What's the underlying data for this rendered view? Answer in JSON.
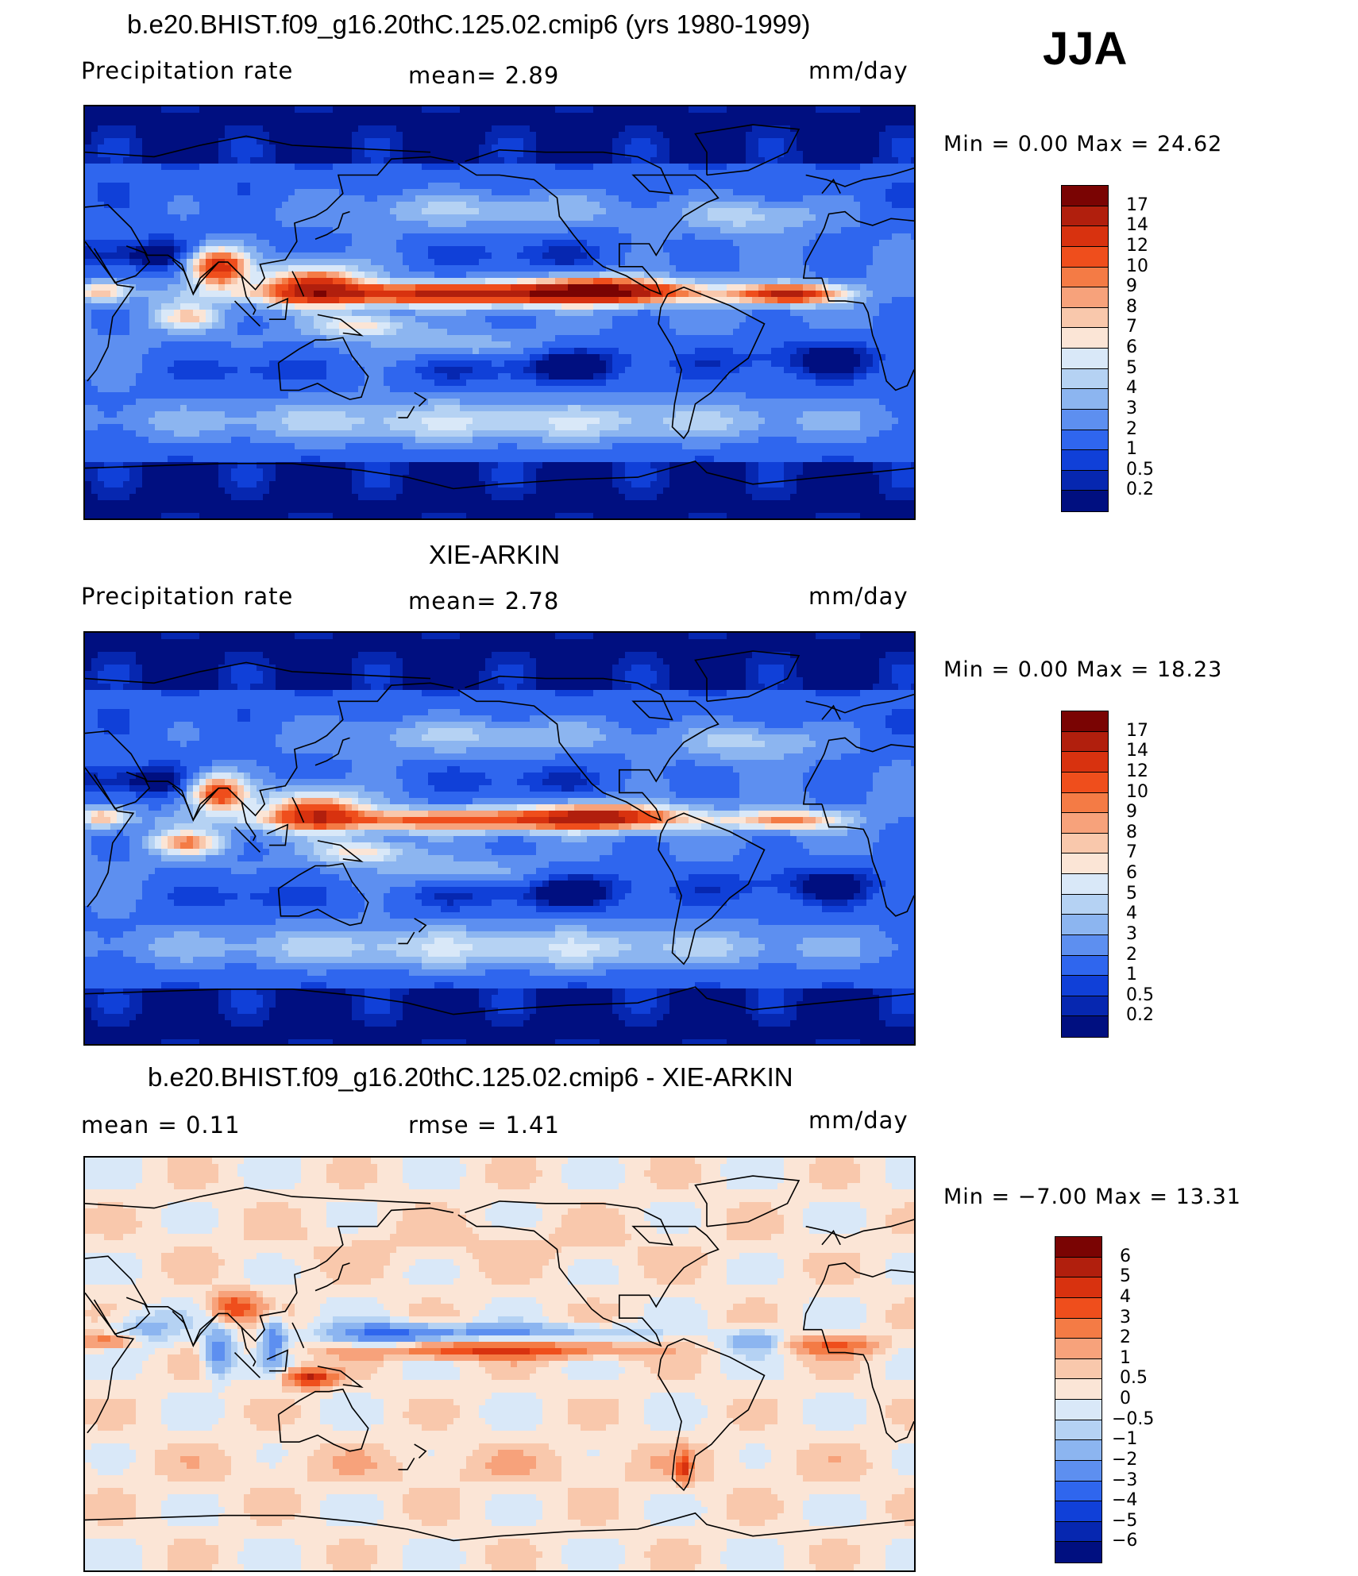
{
  "figure": {
    "season": "JJA",
    "panels": [
      {
        "title": "b.e20.BHIST.f09_g16.20thC.125.02.cmip6 (yrs 1980-1999)",
        "left_label": "Precipitation  rate",
        "center_label": "mean=    2.89",
        "units": "mm/day",
        "minmax": "Min  =     0.00  Max  =    24.62",
        "palette": "seq"
      },
      {
        "title": "XIE-ARKIN",
        "left_label": "Precipitation  rate",
        "center_label": "mean=    2.78",
        "units": "mm/day",
        "minmax": "Min  =     0.00  Max  =    18.23",
        "palette": "seq"
      },
      {
        "title": "b.e20.BHIST.f09_g16.20thC.125.02.cmip6 - XIE-ARKIN",
        "left_label": "mean  =     0.11",
        "center_label": "rmse  =     1.41",
        "units": "mm/day",
        "minmax": "Min  =   −7.00  Max  =    13.31",
        "palette": "div"
      }
    ]
  },
  "chart_data": [
    {
      "type": "heatmap",
      "title": "b.e20.BHIST.f09_g16.20thC.125.02.cmip6 (yrs 1980-1999)",
      "variable": "Precipitation  rate",
      "units": "mm/day",
      "mean": 2.89,
      "min": 0.0,
      "max": 24.62,
      "colorbar_levels": [
        "17",
        "14",
        "12",
        "10",
        "9",
        "8",
        "7",
        "6",
        "5",
        "4",
        "3",
        "2",
        "1",
        "0.5",
        "0.2"
      ],
      "colors": [
        "#7a0403",
        "#b11f0d",
        "#d8320f",
        "#ef4e1c",
        "#f47b45",
        "#f7a27b",
        "#f9c8ac",
        "#fbe5d6",
        "#d9e8f8",
        "#b5d2f3",
        "#8cb5f0",
        "#5d8ff0",
        "#2f66ee",
        "#1040d8",
        "#0627b0",
        "#000f80"
      ]
    },
    {
      "type": "heatmap",
      "title": "XIE-ARKIN",
      "variable": "Precipitation  rate",
      "units": "mm/day",
      "mean": 2.78,
      "min": 0.0,
      "max": 18.23,
      "colorbar_levels": [
        "17",
        "14",
        "12",
        "10",
        "9",
        "8",
        "7",
        "6",
        "5",
        "4",
        "3",
        "2",
        "1",
        "0.5",
        "0.2"
      ],
      "colors": [
        "#7a0403",
        "#b11f0d",
        "#d8320f",
        "#ef4e1c",
        "#f47b45",
        "#f7a27b",
        "#f9c8ac",
        "#fbe5d6",
        "#d9e8f8",
        "#b5d2f3",
        "#8cb5f0",
        "#5d8ff0",
        "#2f66ee",
        "#1040d8",
        "#0627b0",
        "#000f80"
      ]
    },
    {
      "type": "heatmap",
      "title": "b.e20.BHIST.f09_g16.20thC.125.02.cmip6 - XIE-ARKIN",
      "units": "mm/day",
      "mean": 0.11,
      "rmse": 1.41,
      "min": -7.0,
      "max": 13.31,
      "colorbar_levels": [
        "6",
        "5",
        "4",
        "3",
        "2",
        "1",
        "0.5",
        "0",
        "−0.5",
        "−1",
        "−2",
        "−3",
        "−4",
        "−5",
        "−6"
      ],
      "colors": [
        "#7a0403",
        "#b11f0d",
        "#d8320f",
        "#ef4e1c",
        "#f47b45",
        "#f7a27b",
        "#f9c8ac",
        "#fbe5d6",
        "#d9e8f8",
        "#b5d2f3",
        "#8cb5f0",
        "#5d8ff0",
        "#2f66ee",
        "#1040d8",
        "#0627b0",
        "#000f80"
      ]
    }
  ]
}
